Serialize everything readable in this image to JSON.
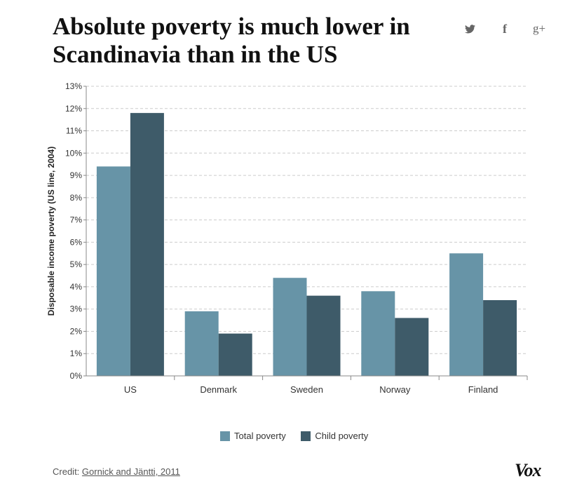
{
  "title": "Absolute poverty is much lower in Scandinavia than in the US",
  "share": {
    "twitter_icon": "twitter-icon",
    "facebook_glyph": "f",
    "googleplus_glyph": "g+"
  },
  "chart_data": {
    "type": "bar",
    "title": "Absolute poverty is much lower in Scandinavia than in the US",
    "xlabel": "",
    "ylabel": "Disposable income poverty (US line, 2004)",
    "categories": [
      "US",
      "Denmark",
      "Sweden",
      "Norway",
      "Finland"
    ],
    "series": [
      {
        "name": "Total poverty",
        "values": [
          9.4,
          2.9,
          4.4,
          3.8,
          5.5
        ],
        "color": "#6794a7"
      },
      {
        "name": "Child poverty",
        "values": [
          11.8,
          1.9,
          3.6,
          2.6,
          3.4
        ],
        "color": "#3e5b69"
      }
    ],
    "ylim": [
      0,
      13
    ],
    "yticks": [
      "0%",
      "1%",
      "2%",
      "3%",
      "4%",
      "5%",
      "6%",
      "7%",
      "8%",
      "9%",
      "10%",
      "11%",
      "12%",
      "13%"
    ],
    "grid": true,
    "legend_position": "bottom"
  },
  "legend": {
    "total_label": "Total poverty",
    "child_label": "Child poverty"
  },
  "credit": {
    "prefix": "Credit:",
    "source": "Gornick and Jäntti, 2011"
  },
  "brand": {
    "logo": "Vox"
  }
}
